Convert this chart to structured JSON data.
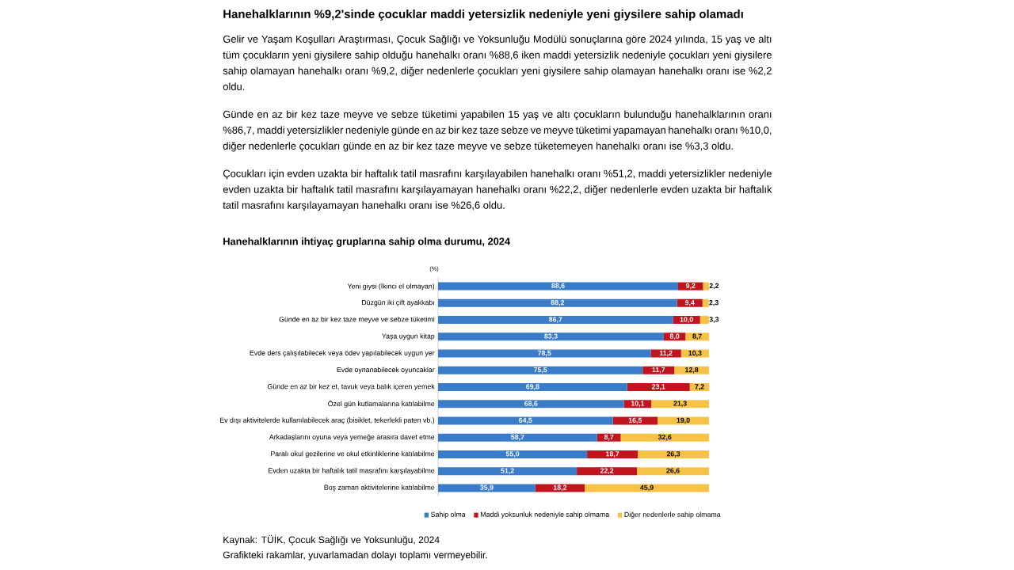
{
  "chart_data": {
    "type": "bar",
    "orientation": "horizontal",
    "stacked": true,
    "title": "Hanehalklarının %9,2'sinde çocuklar maddi yetersizlik nedeniyle yeni giysilere sahip olamadı",
    "subtitle": "Hanehalklarının ihtiyaç gruplarına sahip olma durumu, 2024",
    "categories": [
      "Yeni giysi (İkinci el olmayan)",
      "Düzgün iki çift ayakkabı",
      "Günde en az bir kez taze meyve ve sebze tüketimi",
      "Yaşa uygun kitap",
      "Evde ders çalışılabilecek veya ödev yapılabilecek uygun yer",
      "Evde oynanabilecek oyuncaklar",
      "Günde en az bir kez et, tavuk veya balık içeren yemek",
      "Özel gün kutlamalarına katılabilme",
      "Ev dışı aktivitelerde kullanılabilecek araç (bisiklet, tekerlekli paten vb.)",
      "Arkadaşlarını oyuna veya yemeğe arasıra davet etme",
      "Paralı okul gezilerine ve okul etkinliklerine katılabilme",
      "Evden uzakta bir haftalık tatil masrafını karşılayabilme",
      "Boş zaman aktivitelerine katılabilme"
    ],
    "series": [
      {
        "name": "Sahip olma",
        "color": "#3a7cc9",
        "values": [
          88.6,
          88.2,
          86.7,
          83.3,
          78.5,
          75.5,
          69.8,
          68.6,
          64.5,
          58.7,
          55.0,
          51.2,
          35.9
        ],
        "value_labels": [
          "88,6",
          "88,2",
          "86,7",
          "83,3",
          "78,5",
          "75,5",
          "69,8",
          "68,6",
          "64,5",
          "58,7",
          "55,0",
          "51,2",
          "35,9"
        ]
      },
      {
        "name": "Maddi yoksunluk nedeniyle sahip olmama",
        "color": "#c0141e",
        "values": [
          9.2,
          9.4,
          10.0,
          8.0,
          11.2,
          11.7,
          23.1,
          10.1,
          16.5,
          8.7,
          18.7,
          22.2,
          18.2
        ],
        "value_labels": [
          "9,2",
          "9,4",
          "10,0",
          "8,0",
          "11,2",
          "11,7",
          "23,1",
          "10,1",
          "16,5",
          "8,7",
          "18,7",
          "22,2",
          "18,2"
        ]
      },
      {
        "name": "Diğer nedenlerle sahip olmama",
        "color": "#f7c346",
        "values": [
          2.2,
          2.3,
          3.3,
          8.7,
          10.3,
          12.8,
          7.2,
          21.3,
          19.0,
          32.6,
          26.3,
          26.6,
          45.9
        ],
        "value_labels": [
          "2,2",
          "2,3",
          "3,3",
          "8,7",
          "10,3",
          "12,8",
          "7,2",
          "21,3",
          "19,0",
          "32,6",
          "26,3",
          "26,6",
          "45,9"
        ]
      }
    ],
    "xlim": [
      0,
      100
    ],
    "tick_labels": "y",
    "legend": "bottom",
    "annotations": [
      "Gelir ve Yaşam Koşulları Araştırması, Çocuk Sağlığı ve Yoksunluğu Modülü sonuçlarına göre 2024 yılında, 15 yaş ve altı tüm çocukların yeni giysilere sahip olduğu hanehalkı oranı %88,6 iken maddi yetersizlik nedeniyle çocukları yeni giysilere sahip olamayan hanehalkı oranı %9,2, diğer nedenlerle çocukları yeni giysilere sahip olamayan hanehalkı oranı ise %2,2 oldu.",
      "Günde en az bir kez taze meyve ve sebze tüketimi yapabilen 15 yaş ve altı çocukların bulunduğu hanehalklarının oranı %86,7, maddi yetersizlikler nedeniyle günde en az bir kez taze sebze ve meyve tüketimi yapamayan hanehalkı oranı %10,0, diğer nedenlerle çocukları günde en az bir kez taze meyve ve sebze tüketemeyen hanehalkı oranı ise %3,3 oldu.",
      "Çocukları için evden uzakta bir haftalık tatil masrafını karşılayabilen hanehalkı oranı %51,2, maddi yetersizlikler nedeniyle evden uzakta bir haftalık tatil masrafını karşılayamayan hanehalkı oranı %22,2, diğer nedenlerle evden uzakta bir haftalık tatil masrafını karşılayamayan hanehalkı oranı ise %26,6 oldu.",
      "(%)",
      "Kaynak: TÜİK, Çocuk Sağlığı ve Yoksunluğu, 2024",
      "Grafikteki rakamlar, yuvarlamadan dolayı toplamı vermeyebilir."
    ]
  }
}
